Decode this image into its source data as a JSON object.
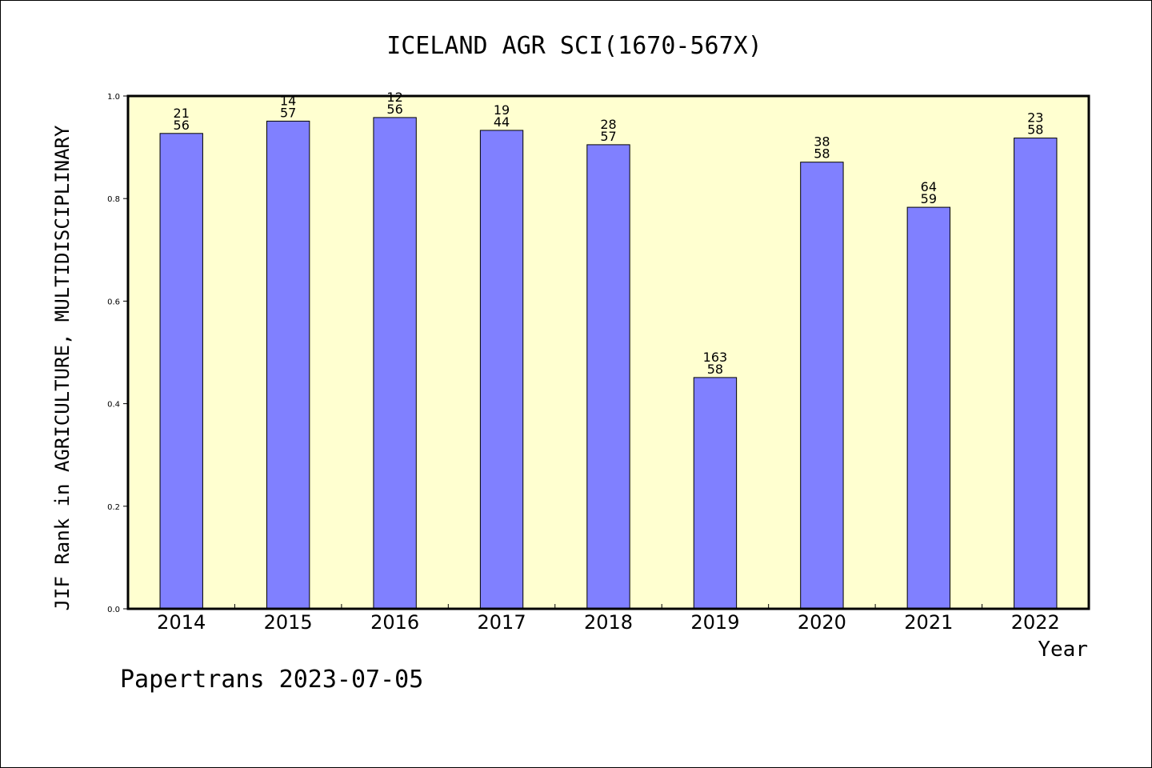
{
  "chart_data": {
    "type": "bar",
    "title": "ICELAND AGR SCI(1670-567X)",
    "xlabel": "Year",
    "ylabel": "JIF Rank in AGRICULTURE, MULTIDISCIPLINARY",
    "ylim": [
      0,
      1.0
    ],
    "yticks": [
      "0.0",
      "0.2",
      "0.4",
      "0.6",
      "0.8",
      "1.0"
    ],
    "categories": [
      "2014",
      "2015",
      "2016",
      "2017",
      "2018",
      "2019",
      "2020",
      "2021",
      "2022"
    ],
    "values": [
      0.927,
      0.951,
      0.958,
      0.933,
      0.905,
      0.451,
      0.871,
      0.783,
      0.918
    ],
    "labels_top": [
      "21",
      "14",
      "12",
      "19",
      "28",
      "163",
      "38",
      "64",
      "23"
    ],
    "labels_bottom": [
      "56",
      "57",
      "56",
      "44",
      "57",
      "58",
      "58",
      "59",
      "58"
    ],
    "grid": false,
    "colors": {
      "plot_bg": "#ffffd0",
      "bar": "#8080ff",
      "bar_edge": "#000000"
    }
  },
  "footer": "Papertrans 2023-07-05"
}
